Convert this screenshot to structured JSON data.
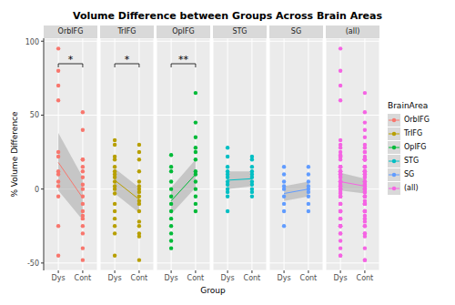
{
  "chart_data": {
    "type": "scatter",
    "title": "Volume Difference between Groups Across Brain Areas",
    "x_label": "Group",
    "y_label": "% Volume Difference",
    "legend_title": "BrainArea",
    "legend": "right",
    "grid": true,
    "categories": [
      "Dys",
      "Cont"
    ],
    "ylim": [
      -55,
      102
    ],
    "yticks": [
      -50,
      0,
      50,
      100
    ],
    "series": [
      {
        "name": "OrbIFG",
        "color": "#F8766D",
        "values": [
          [
            95,
            80,
            70,
            60,
            25,
            22,
            12,
            10,
            5,
            2,
            -5,
            -25,
            -45
          ],
          [
            52,
            40,
            20,
            20,
            15,
            12,
            8,
            3,
            0,
            -5,
            -10,
            -15,
            -18,
            -20,
            -25,
            -30,
            -40,
            -48
          ]
        ],
        "mean": [
          18,
          -6
        ],
        "ci_lower": [
          -1,
          -21
        ],
        "ci_upper": [
          38,
          8
        ],
        "significance": "*"
      },
      {
        "name": "TrIFG",
        "color": "#B79F00",
        "values": [
          [
            33,
            30,
            22,
            20,
            15,
            12,
            10,
            8,
            5,
            2,
            0,
            -3,
            -10,
            -15,
            -20,
            -25,
            -30,
            -45
          ],
          [
            30,
            25,
            20,
            12,
            5,
            2,
            0,
            -2,
            -5,
            -8,
            -10,
            -15,
            -22,
            -25,
            -30,
            -32,
            -48
          ]
        ],
        "mean": [
          6,
          -7
        ],
        "ci_lower": [
          -3,
          -16
        ],
        "ci_upper": [
          14,
          1
        ],
        "significance": "*"
      },
      {
        "name": "OpIFG",
        "color": "#00BA38",
        "values": [
          [
            23,
            15,
            12,
            5,
            0,
            -5,
            -10,
            -15,
            -20,
            -25,
            -30,
            -35,
            -40
          ],
          [
            65,
            45,
            35,
            28,
            25,
            20,
            12,
            10,
            5,
            0,
            -5,
            -10,
            -15
          ]
        ],
        "mean": [
          -8,
          10
        ],
        "ci_lower": [
          -17,
          1
        ],
        "ci_upper": [
          1,
          20
        ],
        "significance": "**"
      },
      {
        "name": "STG",
        "color": "#00BFC4",
        "values": [
          [
            28,
            22,
            15,
            12,
            10,
            8,
            5,
            3,
            0,
            -2,
            -5,
            -15
          ],
          [
            22,
            20,
            15,
            12,
            10,
            8,
            5,
            3,
            0,
            -2,
            -5
          ]
        ],
        "mean": [
          6,
          7
        ],
        "ci_lower": [
          0,
          2
        ],
        "ci_upper": [
          12,
          12
        ]
      },
      {
        "name": "SG",
        "color": "#619CFF",
        "values": [
          [
            15,
            10,
            5,
            2,
            0,
            -5,
            -10,
            -15,
            -25
          ],
          [
            15,
            10,
            5,
            2,
            0,
            -2,
            -5,
            -10,
            -15
          ]
        ],
        "mean": [
          -3,
          0
        ],
        "ci_lower": [
          -8,
          -5
        ],
        "ci_upper": [
          2,
          5
        ]
      },
      {
        "name": "(all)",
        "color": "#F564E3",
        "values": [
          [
            95,
            80,
            70,
            60,
            25,
            22,
            12,
            10,
            5,
            2,
            -5,
            -25,
            -45,
            33,
            30,
            22,
            20,
            15,
            12,
            10,
            8,
            5,
            2,
            0,
            -3,
            -10,
            -15,
            -20,
            -25,
            -30,
            -45,
            23,
            15,
            12,
            5,
            0,
            -5,
            -10,
            -15,
            -20,
            -25,
            -30,
            -35,
            -40,
            28,
            22,
            15,
            12,
            10,
            8,
            5,
            3,
            0,
            -2,
            -5,
            -15,
            15,
            10,
            5,
            2,
            0,
            -5,
            -10,
            -15,
            -25
          ],
          [
            52,
            40,
            20,
            20,
            15,
            12,
            8,
            3,
            0,
            -5,
            -10,
            -15,
            -18,
            -20,
            -25,
            -30,
            -40,
            -48,
            30,
            25,
            20,
            12,
            5,
            2,
            0,
            -2,
            -5,
            -8,
            -10,
            -15,
            -22,
            -25,
            -30,
            -32,
            -48,
            65,
            45,
            35,
            28,
            25,
            20,
            12,
            10,
            5,
            0,
            -5,
            -10,
            -15,
            22,
            20,
            15,
            12,
            10,
            8,
            5,
            3,
            0,
            -2,
            -5,
            15,
            10,
            5,
            2,
            0,
            -2,
            -5,
            -10,
            -15
          ]
        ],
        "mean": [
          5,
          2
        ],
        "ci_lower": [
          -1,
          -3
        ],
        "ci_upper": [
          11,
          7
        ]
      }
    ]
  }
}
